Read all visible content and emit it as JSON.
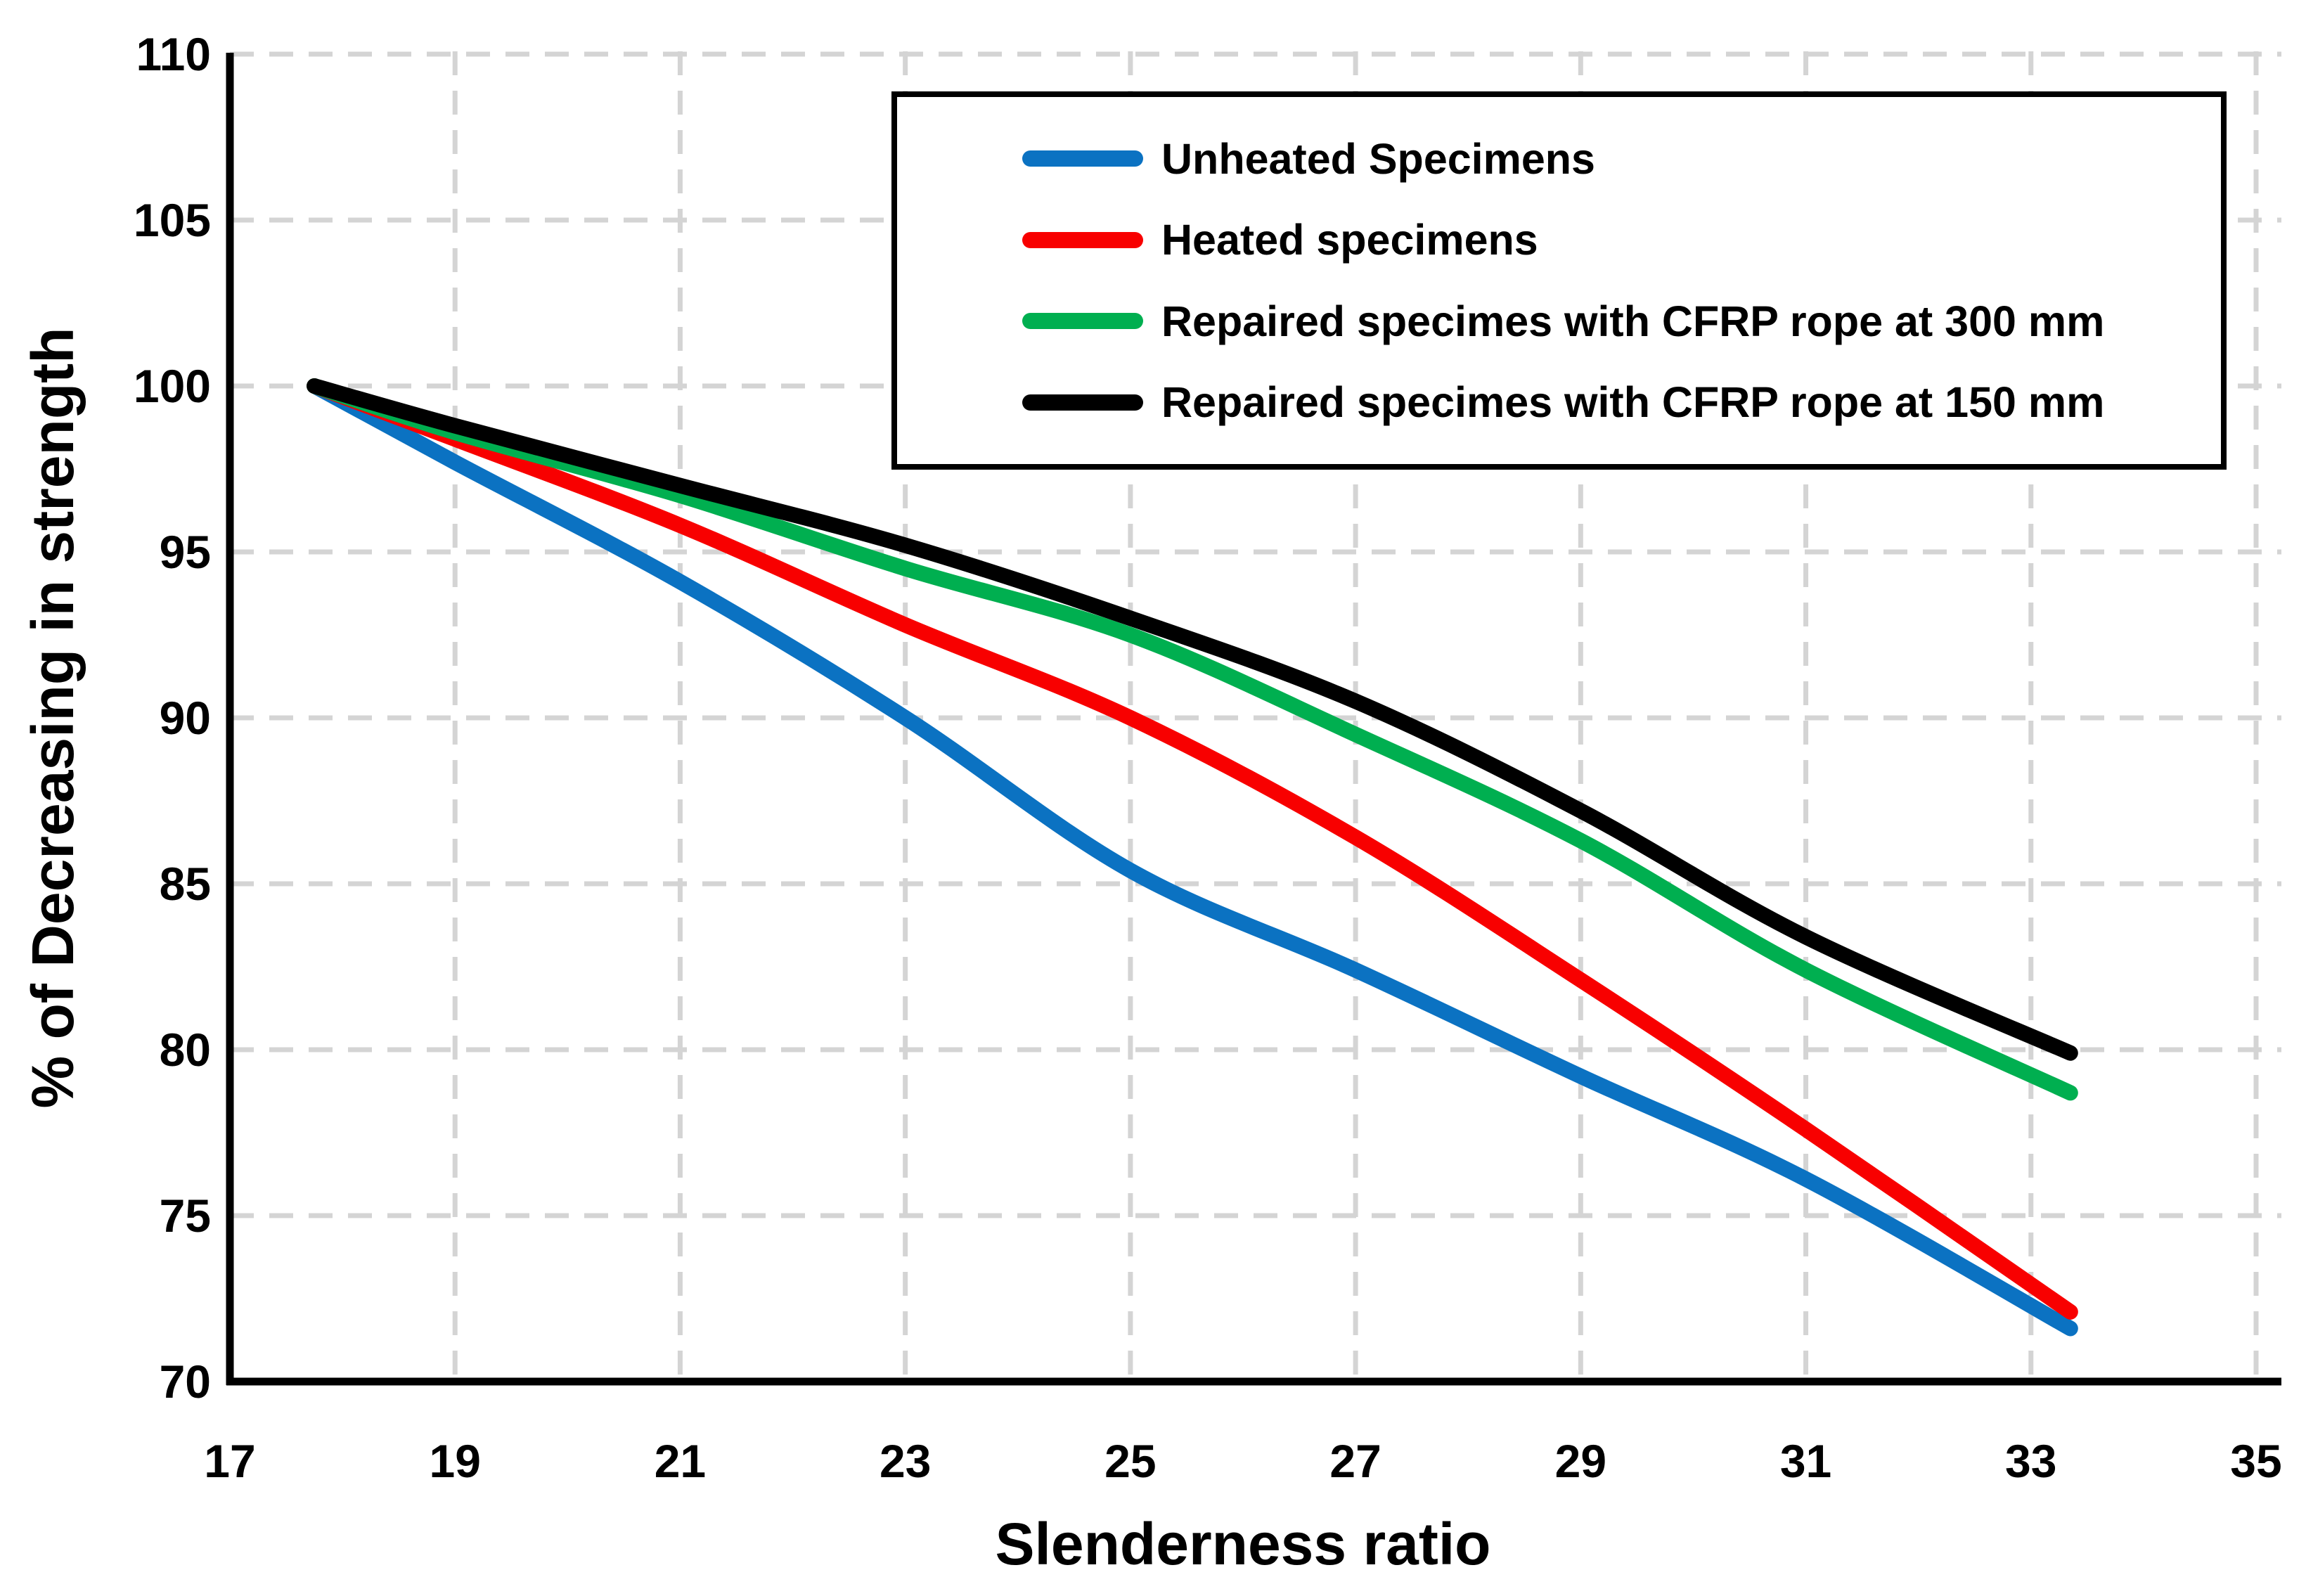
{
  "chart_data": {
    "type": "line",
    "title": "",
    "xlabel": "Slenderness ratio",
    "ylabel": "% of Decreasing in strength",
    "xlim": [
      17,
      35
    ],
    "ylim": [
      70,
      110
    ],
    "x_ticks": [
      17,
      19,
      21,
      23,
      25,
      27,
      29,
      31,
      33,
      35
    ],
    "y_ticks": [
      70,
      75,
      80,
      85,
      90,
      95,
      100,
      105,
      110
    ],
    "grid": "dashed",
    "grid_color": "#D4D4D4",
    "axis_color": "#000000",
    "legend_position": "top-right",
    "x": [
      17.75,
      19,
      21,
      23,
      25,
      27,
      29,
      31,
      33.35
    ],
    "series": [
      {
        "name": "Unheated Specimens",
        "color": "#0B72C2",
        "values": [
          100,
          97.7,
          94.1,
          90.0,
          85.4,
          82.4,
          79.2,
          76.1,
          71.6
        ]
      },
      {
        "name": "Heated specimens",
        "color": "#F80000",
        "values": [
          100,
          98.4,
          95.8,
          92.8,
          90.0,
          86.4,
          82.1,
          77.6,
          72.1
        ]
      },
      {
        "name": "Repaired specimes with CFRP rope at 300 mm",
        "color": "#00AF50",
        "values": [
          100,
          98.6,
          96.7,
          94.5,
          92.5,
          89.5,
          86.3,
          82.4,
          78.7
        ]
      },
      {
        "name": "Repaired specimes with CFRP rope at 150 mm",
        "color": "#000000",
        "values": [
          100,
          98.8,
          97.0,
          95.2,
          93.0,
          90.5,
          87.2,
          83.4,
          79.9
        ]
      }
    ]
  }
}
